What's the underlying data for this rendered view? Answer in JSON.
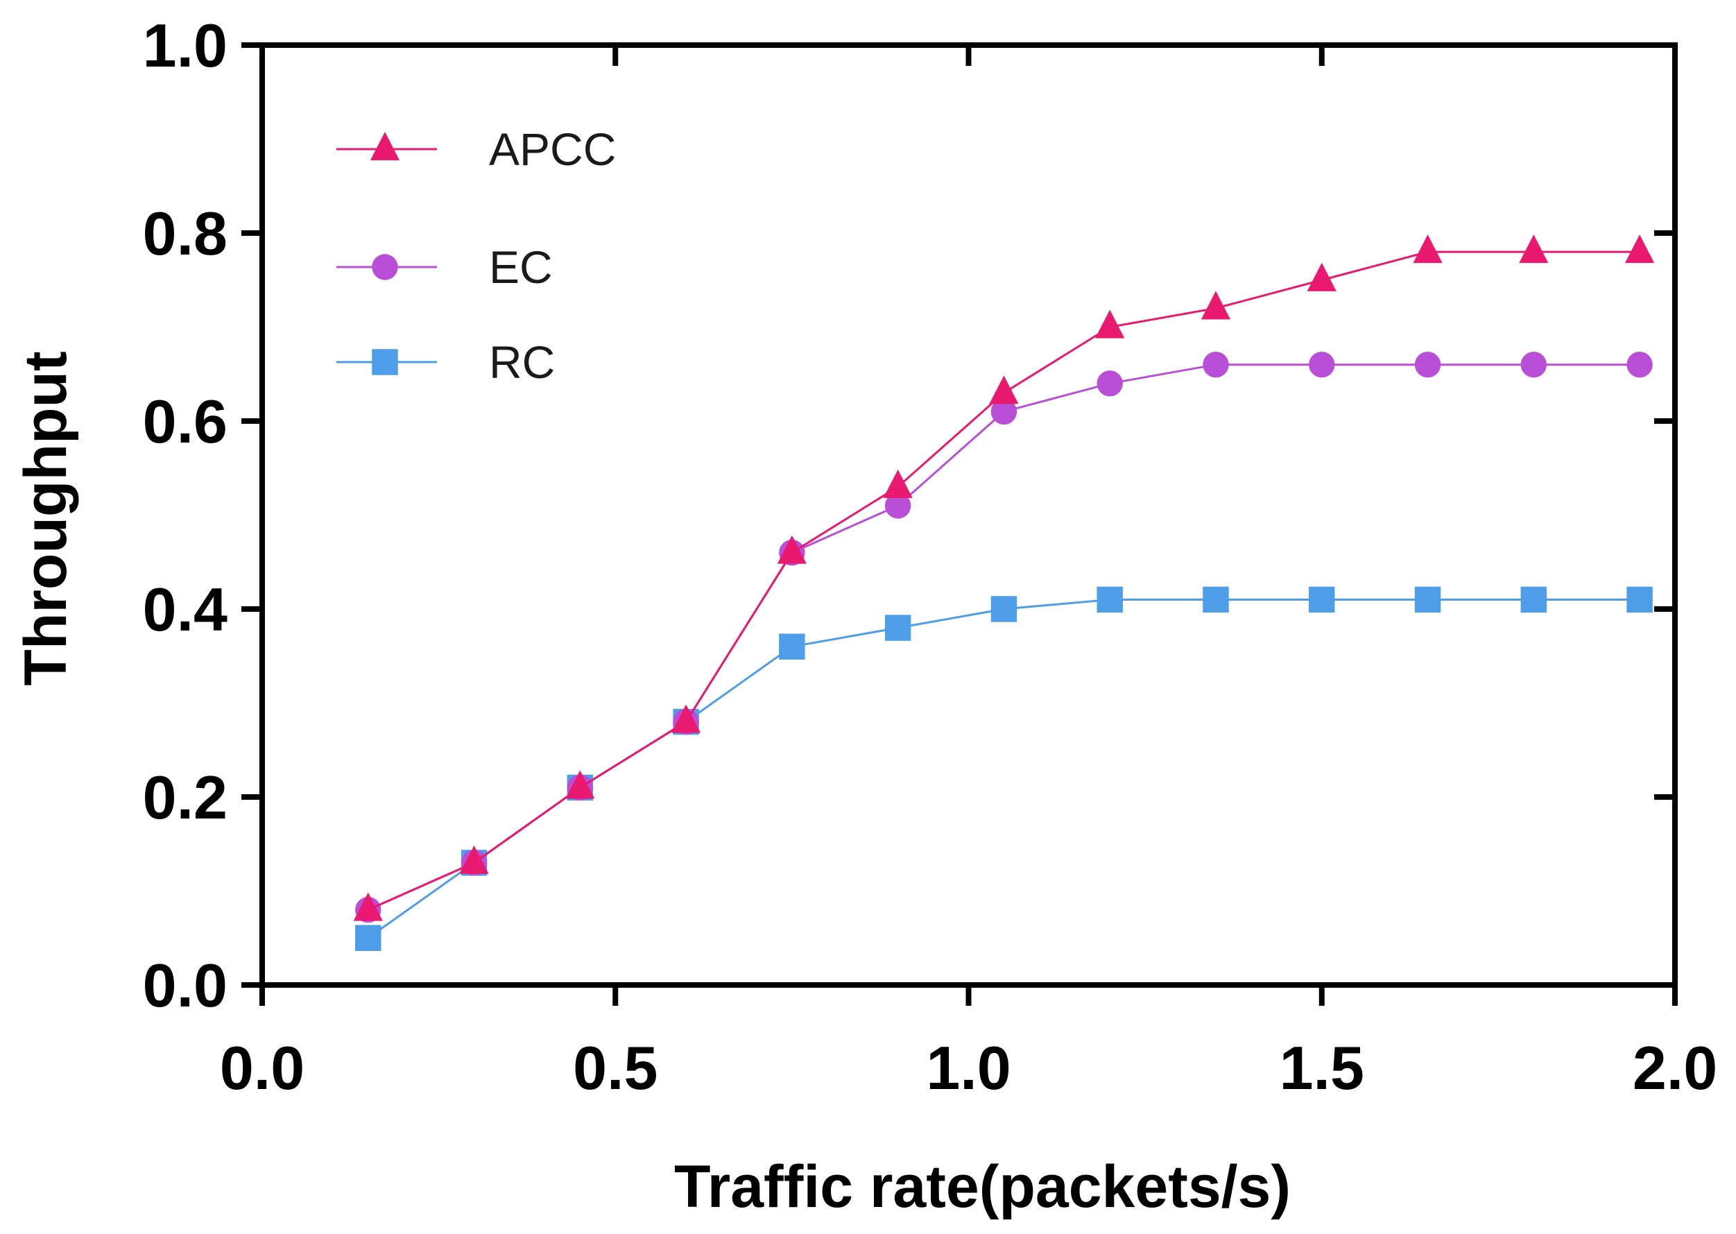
{
  "chart_data": {
    "type": "line",
    "title": "",
    "xlabel": "Traffic rate(packets/s)",
    "ylabel": "Throughput",
    "xlim": [
      0.0,
      2.0
    ],
    "ylim": [
      0.0,
      1.0
    ],
    "xticks": [
      0.0,
      0.5,
      1.0,
      1.5,
      2.0
    ],
    "xtick_labels": [
      "0.0",
      "0.5",
      "1.0",
      "1.5",
      "2.0"
    ],
    "yticks": [
      0.0,
      0.2,
      0.4,
      0.6,
      0.8,
      1.0
    ],
    "ytick_labels": [
      "0.0",
      "0.2",
      "0.4",
      "0.6",
      "0.8",
      "1.0"
    ],
    "grid": false,
    "legend_position": "top-left",
    "x": [
      0.15,
      0.3,
      0.45,
      0.6,
      0.75,
      0.9,
      1.05,
      1.2,
      1.35,
      1.5,
      1.65,
      1.8,
      1.95
    ],
    "series": [
      {
        "name": "APCC",
        "marker": "triangle",
        "color": "#e8196f",
        "values": [
          0.08,
          0.13,
          0.21,
          0.28,
          0.46,
          0.53,
          0.63,
          0.7,
          0.72,
          0.75,
          0.78,
          0.78,
          0.78
        ]
      },
      {
        "name": "EC",
        "marker": "circle",
        "color": "#b84fd6",
        "values": [
          0.08,
          0.13,
          0.21,
          0.28,
          0.46,
          0.51,
          0.61,
          0.64,
          0.66,
          0.66,
          0.66,
          0.66,
          0.66
        ]
      },
      {
        "name": "RC",
        "marker": "square",
        "color": "#4d9de8",
        "values": [
          0.05,
          0.13,
          0.21,
          0.28,
          0.36,
          0.38,
          0.4,
          0.41,
          0.41,
          0.41,
          0.41,
          0.41,
          0.41
        ]
      }
    ]
  }
}
